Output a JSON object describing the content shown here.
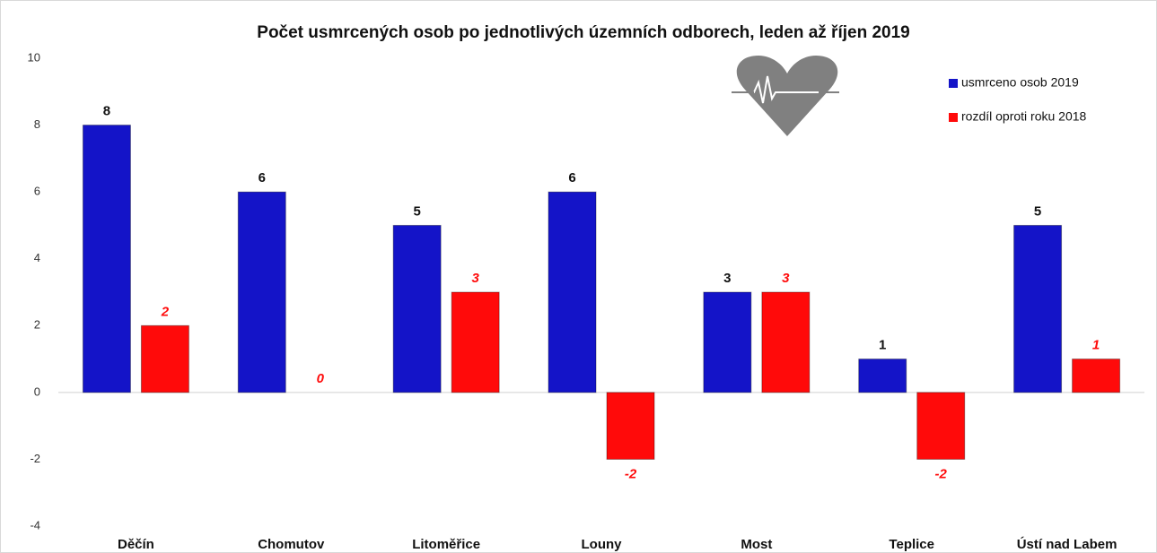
{
  "chart_data": {
    "type": "bar",
    "title": "Počet usmrcených osob po jednotlivých územních odborech, leden až říjen 2019",
    "categories": [
      "Děčín",
      "Chomutov",
      "Litoměřice",
      "Louny",
      "Most",
      "Teplice",
      "Ústí nad Labem"
    ],
    "series": [
      {
        "name": "usmrceno osob 2019",
        "color": "#1414c8",
        "values": [
          8,
          6,
          5,
          6,
          3,
          1,
          5
        ]
      },
      {
        "name": "rozdíl oproti roku 2018",
        "color": "#ff0a0a",
        "values": [
          2,
          0,
          3,
          -2,
          3,
          -2,
          1
        ]
      }
    ],
    "ylim": [
      -4,
      10
    ],
    "yticks": [
      -4,
      -2,
      0,
      2,
      4,
      6,
      8,
      10
    ],
    "legend": "upper right"
  }
}
